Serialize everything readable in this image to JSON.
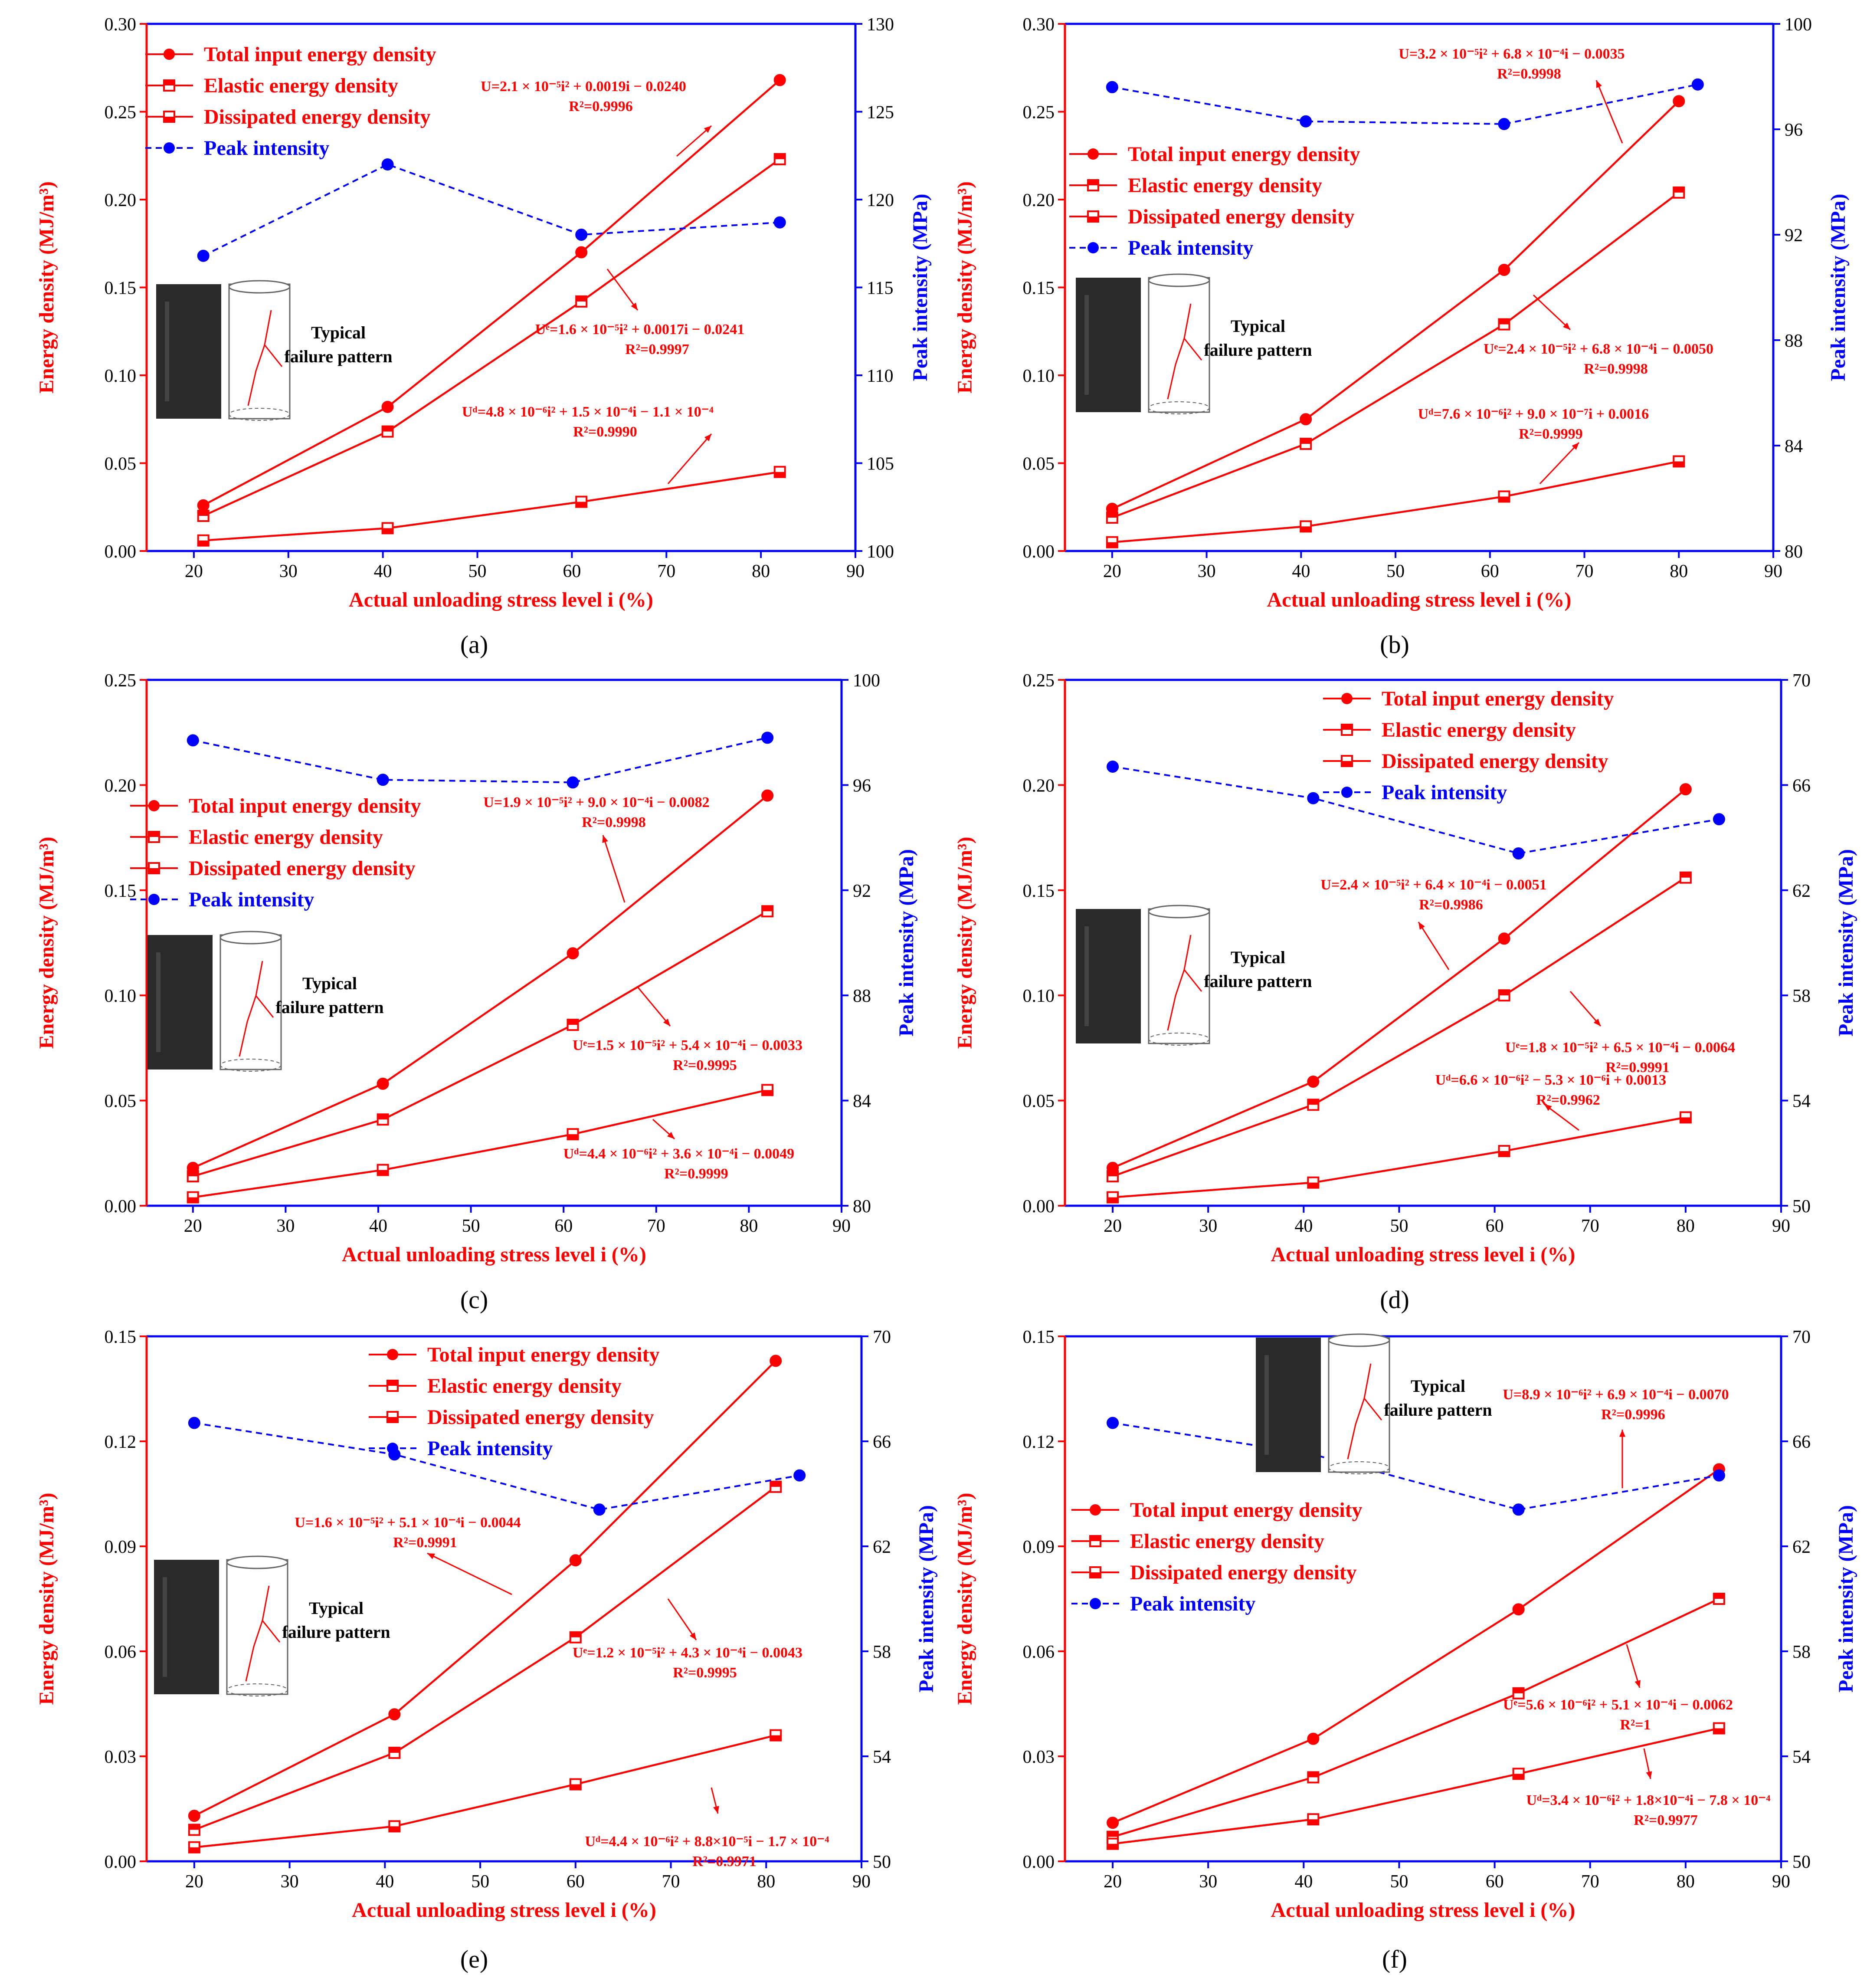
{
  "colors": {
    "energy": "#ff0000",
    "peak": "#0000ff",
    "axis_left": "#ff0000",
    "axis_right": "#0000ff",
    "frame": "#0000ff",
    "tick_text": "#000000",
    "label_text": "#ff0000"
  },
  "common": {
    "xlabel": "Actual unloading stress level i (%)",
    "ylabel_left": "Energy density (MJ/m³)",
    "ylabel_right": "Peak intensity (MPa)",
    "xlim": [
      15,
      90
    ],
    "xticks": [
      20,
      30,
      40,
      50,
      60,
      70,
      80,
      90
    ],
    "legend_labels": [
      "Total input energy density",
      "Elastic energy density",
      "Dissipated energy density",
      "Peak intensity"
    ],
    "inset_caption_line1": "Typical",
    "inset_caption_line2": "failure pattern"
  },
  "chart_data": [
    {
      "type": "line",
      "panel": "(a)",
      "ylim": [
        0,
        0.3
      ],
      "yticks": [
        0,
        0.05,
        0.1,
        0.15,
        0.2,
        0.25,
        0.3
      ],
      "ydec": 2,
      "y2lim": [
        100,
        130
      ],
      "y2ticks": [
        100,
        105,
        110,
        115,
        120,
        125,
        130
      ],
      "y2dec": 0,
      "legend_position": "top-left",
      "inset_position": "left-middle",
      "series": [
        {
          "name": "Total input energy density",
          "x": [
            21,
            40.5,
            61,
            82
          ],
          "values": [
            0.026,
            0.082,
            0.17,
            0.268
          ]
        },
        {
          "name": "Elastic energy density",
          "x": [
            21,
            40.5,
            61,
            82
          ],
          "values": [
            0.02,
            0.068,
            0.142,
            0.223
          ]
        },
        {
          "name": "Dissipated energy density",
          "x": [
            21,
            40.5,
            61,
            82
          ],
          "values": [
            0.006,
            0.013,
            0.028,
            0.045
          ]
        },
        {
          "name": "Peak intensity",
          "axis": "right",
          "x": [
            21,
            40.5,
            61,
            82
          ],
          "values": [
            116.8,
            122.0,
            118.0,
            118.7
          ]
        }
      ],
      "annotations": [
        {
          "eq": "U=2.1 × 10⁻⁵i² + 0.0019i − 0.0240",
          "r2": "R²=0.9996"
        },
        {
          "eq": "Uᵉ=1.6 × 10⁻⁵i² + 0.0017i − 0.0241",
          "r2": "R²=0.9997"
        },
        {
          "eq": "Uᵈ=4.8 × 10⁻⁶i² + 1.5 × 10⁻⁴i − 1.1 × 10⁻⁴",
          "r2": "R²=0.9990"
        }
      ]
    },
    {
      "type": "line",
      "panel": "(b)",
      "ylim": [
        0,
        0.3
      ],
      "yticks": [
        0,
        0.05,
        0.1,
        0.15,
        0.2,
        0.25,
        0.3
      ],
      "ydec": 2,
      "y2lim": [
        80,
        100
      ],
      "y2ticks": [
        80,
        84,
        88,
        92,
        96,
        100
      ],
      "y2dec": 0,
      "legend_position": "upper-left",
      "inset_position": "left-middle",
      "series": [
        {
          "name": "Total input energy density",
          "x": [
            20,
            40.5,
            61.5,
            80
          ],
          "values": [
            0.024,
            0.075,
            0.16,
            0.256
          ]
        },
        {
          "name": "Elastic energy density",
          "x": [
            20,
            40.5,
            61.5,
            80
          ],
          "values": [
            0.019,
            0.061,
            0.129,
            0.204
          ]
        },
        {
          "name": "Dissipated energy density",
          "x": [
            20,
            40.5,
            61.5,
            80
          ],
          "values": [
            0.005,
            0.014,
            0.031,
            0.051
          ]
        },
        {
          "name": "Peak intensity",
          "axis": "right",
          "x": [
            20,
            40.5,
            61.5,
            82
          ],
          "values": [
            97.6,
            96.3,
            96.2,
            97.7
          ]
        }
      ],
      "annotations": [
        {
          "eq": "U=3.2 × 10⁻⁵i² + 6.8 × 10⁻⁴i − 0.0035",
          "r2": "R²=0.9998"
        },
        {
          "eq": "Uᵉ=2.4 × 10⁻⁵i² + 6.8 × 10⁻⁴i − 0.0050",
          "r2": "R²=0.9998"
        },
        {
          "eq": "Uᵈ=7.6 × 10⁻⁶i² + 9.0 × 10⁻⁷i + 0.0016",
          "r2": "R²=0.9999"
        }
      ]
    },
    {
      "type": "line",
      "panel": "(c)",
      "ylim": [
        0,
        0.25
      ],
      "yticks": [
        0,
        0.05,
        0.1,
        0.15,
        0.2,
        0.25
      ],
      "ydec": 2,
      "y2lim": [
        80,
        100
      ],
      "y2ticks": [
        80,
        84,
        88,
        92,
        96,
        100
      ],
      "y2dec": 0,
      "legend_position": "upper-left",
      "inset_position": "left-middle",
      "series": [
        {
          "name": "Total input energy density",
          "x": [
            20,
            40.5,
            61,
            82
          ],
          "values": [
            0.018,
            0.058,
            0.12,
            0.195
          ]
        },
        {
          "name": "Elastic energy density",
          "x": [
            20,
            40.5,
            61,
            82
          ],
          "values": [
            0.014,
            0.041,
            0.086,
            0.14
          ]
        },
        {
          "name": "Dissipated energy density",
          "x": [
            20,
            40.5,
            61,
            82
          ],
          "values": [
            0.004,
            0.017,
            0.034,
            0.055
          ]
        },
        {
          "name": "Peak intensity",
          "axis": "right",
          "x": [
            20,
            40.5,
            61,
            82
          ],
          "values": [
            97.7,
            96.2,
            96.1,
            97.8
          ]
        }
      ],
      "annotations": [
        {
          "eq": "U=1.9 × 10⁻⁵i² + 9.0 × 10⁻⁴i − 0.0082",
          "r2": "R²=0.9998"
        },
        {
          "eq": "Uᵉ=1.5 × 10⁻⁵i² + 5.4 × 10⁻⁴i − 0.0033",
          "r2": "R²=0.9995"
        },
        {
          "eq": "Uᵈ=4.4 × 10⁻⁶i² + 3.6 × 10⁻⁴i − 0.0049",
          "r2": "R²=0.9999"
        }
      ]
    },
    {
      "type": "line",
      "panel": "(d)",
      "ylim": [
        0,
        0.25
      ],
      "yticks": [
        0,
        0.05,
        0.1,
        0.15,
        0.2,
        0.25
      ],
      "ydec": 2,
      "y2lim": [
        50,
        70
      ],
      "y2ticks": [
        50,
        54,
        58,
        62,
        66,
        70
      ],
      "y2dec": 0,
      "legend_position": "top-right",
      "inset_position": "left-middle",
      "series": [
        {
          "name": "Total input energy density",
          "x": [
            20,
            41,
            61,
            80
          ],
          "values": [
            0.018,
            0.059,
            0.127,
            0.198
          ]
        },
        {
          "name": "Elastic energy density",
          "x": [
            20,
            41,
            61,
            80
          ],
          "values": [
            0.014,
            0.048,
            0.1,
            0.156
          ]
        },
        {
          "name": "Dissipated energy density",
          "x": [
            20,
            41,
            61,
            80
          ],
          "values": [
            0.004,
            0.011,
            0.026,
            0.042
          ]
        },
        {
          "name": "Peak intensity",
          "axis": "right",
          "x": [
            20,
            41,
            62.5,
            83.5
          ],
          "values": [
            66.7,
            65.5,
            63.4,
            64.7
          ]
        }
      ],
      "annotations": [
        {
          "eq": "U=2.4 × 10⁻⁵i² + 6.4 × 10⁻⁴i − 0.0051",
          "r2": "R²=0.9986"
        },
        {
          "eq": "Uᵉ=1.8 × 10⁻⁵i² + 6.5 × 10⁻⁴i − 0.0064",
          "r2": "R²=0.9991"
        },
        {
          "eq": "Uᵈ=6.6 × 10⁻⁶i² − 5.3 × 10⁻⁶i + 0.0013",
          "r2": "R²=0.9962"
        }
      ]
    },
    {
      "type": "line",
      "panel": "(e)",
      "ylim": [
        0,
        0.15
      ],
      "yticks": [
        0,
        0.03,
        0.06,
        0.09,
        0.12,
        0.15
      ],
      "ydec": 2,
      "y2lim": [
        50,
        70
      ],
      "y2ticks": [
        50,
        54,
        58,
        62,
        66,
        70
      ],
      "y2dec": 0,
      "legend_position": "top-right",
      "inset_position": "left-middle",
      "series": [
        {
          "name": "Total input energy density",
          "x": [
            20,
            41,
            60,
            81
          ],
          "values": [
            0.013,
            0.042,
            0.086,
            0.143
          ]
        },
        {
          "name": "Elastic energy density",
          "x": [
            20,
            41,
            60,
            81
          ],
          "values": [
            0.009,
            0.031,
            0.064,
            0.107
          ]
        },
        {
          "name": "Dissipated energy density",
          "x": [
            20,
            41,
            60,
            81
          ],
          "values": [
            0.004,
            0.01,
            0.022,
            0.036
          ]
        },
        {
          "name": "Peak intensity",
          "axis": "right",
          "x": [
            20,
            41,
            62.5,
            83.5
          ],
          "values": [
            66.7,
            65.5,
            63.4,
            64.7
          ]
        }
      ],
      "annotations": [
        {
          "eq": "U=1.6 × 10⁻⁵i² + 5.1 × 10⁻⁴i − 0.0044",
          "r2": "R²=0.9991"
        },
        {
          "eq": "Uᵉ=1.2 × 10⁻⁵i² + 4.3 × 10⁻⁴i − 0.0043",
          "r2": "R²=0.9995"
        },
        {
          "eq": "Uᵈ=4.4 × 10⁻⁶i² + 8.8×10⁻⁵i − 1.7 × 10⁻⁴",
          "r2": "R²=0.9971"
        }
      ]
    },
    {
      "type": "line",
      "panel": "(f)",
      "ylim": [
        0,
        0.15
      ],
      "yticks": [
        0,
        0.03,
        0.06,
        0.09,
        0.12,
        0.15
      ],
      "ydec": 2,
      "y2lim": [
        50,
        70
      ],
      "y2ticks": [
        50,
        54,
        58,
        62,
        66,
        70
      ],
      "y2dec": 0,
      "legend_position": "middle-left",
      "inset_position": "top-center",
      "series": [
        {
          "name": "Total input energy density",
          "x": [
            20,
            41,
            62.5,
            83.5
          ],
          "values": [
            0.011,
            0.035,
            0.072,
            0.112
          ]
        },
        {
          "name": "Elastic energy density",
          "x": [
            20,
            41,
            62.5,
            83.5
          ],
          "values": [
            0.007,
            0.024,
            0.048,
            0.075
          ]
        },
        {
          "name": "Dissipated energy density",
          "x": [
            20,
            41,
            62.5,
            83.5
          ],
          "values": [
            0.005,
            0.012,
            0.025,
            0.038
          ]
        },
        {
          "name": "Peak intensity",
          "axis": "right",
          "x": [
            20,
            41,
            62.5,
            83.5
          ],
          "values": [
            66.7,
            65.5,
            63.4,
            64.7
          ]
        }
      ],
      "annotations": [
        {
          "eq": "U=8.9 × 10⁻⁶i² + 6.9 × 10⁻⁴i − 0.0070",
          "r2": "R²=0.9996"
        },
        {
          "eq": "Uᵉ=5.6 × 10⁻⁶i² + 5.1 × 10⁻⁴i − 0.0062",
          "r2": "R²=1"
        },
        {
          "eq": "Uᵈ=3.4 × 10⁻⁶i² + 1.8×10⁻⁴i − 7.8 × 10⁻⁴",
          "r2": "R²=0.9977"
        }
      ]
    }
  ]
}
